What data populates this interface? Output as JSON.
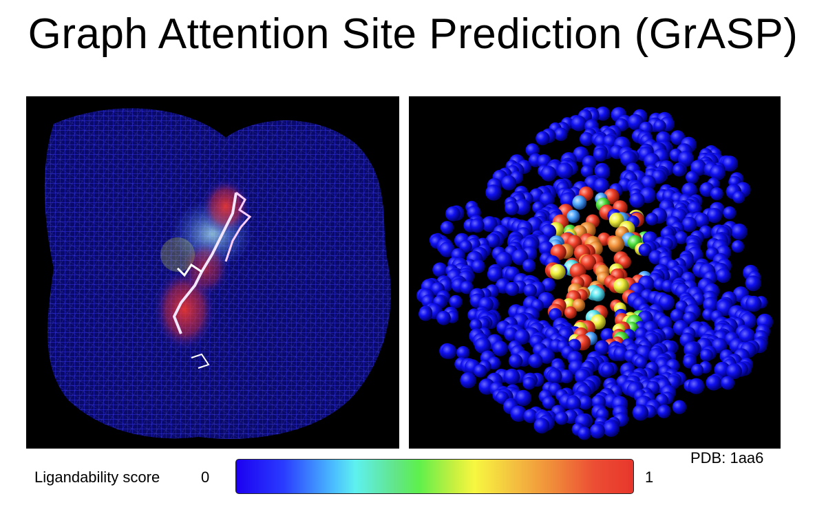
{
  "title": "Graph Attention Site Prediction (GrASP)",
  "pdb_label": "PDB: 1aa6",
  "colorbar": {
    "label": "Ligandability score",
    "min_label": "0",
    "max_label": "1",
    "colors": [
      "#1c00f0",
      "#5ef0f0",
      "#5ef04c",
      "#f7f740",
      "#f08a3a",
      "#e8362c"
    ]
  },
  "panels": {
    "left": {
      "style": "mesh surface with ligand sticks",
      "base_color": "#1a1ad8"
    },
    "right": {
      "style": "sphere atoms colored by score",
      "base_color": "#0a0aff"
    }
  }
}
